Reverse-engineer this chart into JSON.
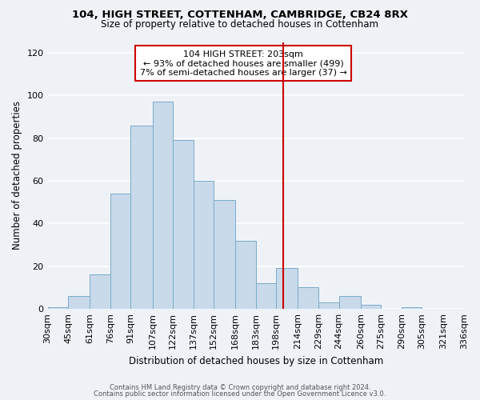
{
  "title1": "104, HIGH STREET, COTTENHAM, CAMBRIDGE, CB24 8RX",
  "title2": "Size of property relative to detached houses in Cottenham",
  "xlabel": "Distribution of detached houses by size in Cottenham",
  "ylabel": "Number of detached properties",
  "bar_heights_full": [
    1,
    6,
    16,
    54,
    86,
    97,
    79,
    60,
    51,
    32,
    12,
    19,
    10,
    3,
    6,
    2,
    0,
    1,
    0,
    0
  ],
  "all_edges": [
    30,
    45,
    61,
    76,
    91,
    107,
    122,
    137,
    152,
    168,
    183,
    198,
    214,
    229,
    244,
    260,
    275,
    290,
    305,
    321,
    336
  ],
  "x_tick_labels": [
    "30sqm",
    "45sqm",
    "61sqm",
    "76sqm",
    "91sqm",
    "107sqm",
    "122sqm",
    "137sqm",
    "152sqm",
    "168sqm",
    "183sqm",
    "198sqm",
    "214sqm",
    "229sqm",
    "244sqm",
    "260sqm",
    "275sqm",
    "290sqm",
    "305sqm",
    "321sqm",
    "336sqm"
  ],
  "bar_color": "#c8daea",
  "bar_edge_color": "#7aaac8",
  "vline_x": 203,
  "vline_color": "#cc0000",
  "annotation_line1": "104 HIGH STREET: 203sqm",
  "annotation_line2": "← 93% of detached houses are smaller (499)",
  "annotation_line3": "7% of semi-detached houses are larger (37) →",
  "annotation_box_color": "#cc0000",
  "annotation_bg": "white",
  "ylim": [
    0,
    125
  ],
  "yticks": [
    0,
    20,
    40,
    60,
    80,
    100,
    120
  ],
  "footer1": "Contains HM Land Registry data © Crown copyright and database right 2024.",
  "footer2": "Contains public sector information licensed under the Open Government Licence v3.0.",
  "background_color": "#eef2f7",
  "grid_color": "white"
}
